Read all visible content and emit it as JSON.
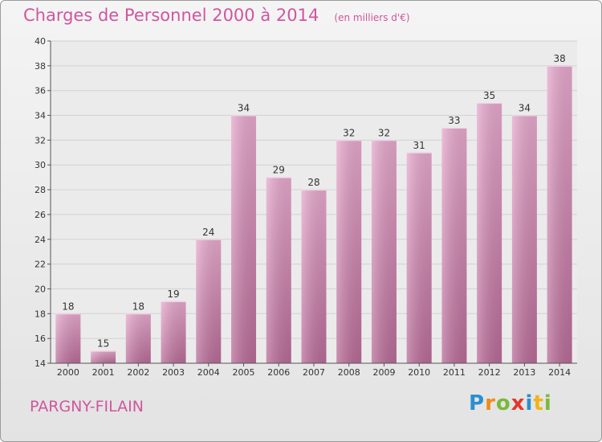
{
  "chart_data": {
    "type": "bar",
    "title": "Charges de Personnel 2000 à 2014",
    "subtitle": "(en milliers d'€)",
    "categories": [
      "2000",
      "2001",
      "2002",
      "2003",
      "2004",
      "2005",
      "2006",
      "2007",
      "2008",
      "2009",
      "2010",
      "2011",
      "2012",
      "2013",
      "2014"
    ],
    "values": [
      18,
      15,
      18,
      19,
      24,
      34,
      29,
      28,
      32,
      32,
      31,
      33,
      35,
      34,
      38
    ],
    "ylim": [
      14,
      40
    ],
    "yticks": [
      14,
      16,
      18,
      20,
      22,
      24,
      26,
      28,
      30,
      32,
      34,
      36,
      38,
      40
    ],
    "xlabel": "",
    "ylabel": "",
    "grid": true,
    "bar_color": "#c77aa6"
  },
  "commune": "PARGNY-FILAIN",
  "logo": {
    "letters": [
      "P",
      "r",
      "o",
      "x",
      "i",
      "t",
      "i"
    ],
    "colors": [
      "#2a8fd0",
      "#f28a18",
      "#7ab93a",
      "#e2382e",
      "#2a8fd0",
      "#f2b31a",
      "#7ab93a"
    ]
  }
}
